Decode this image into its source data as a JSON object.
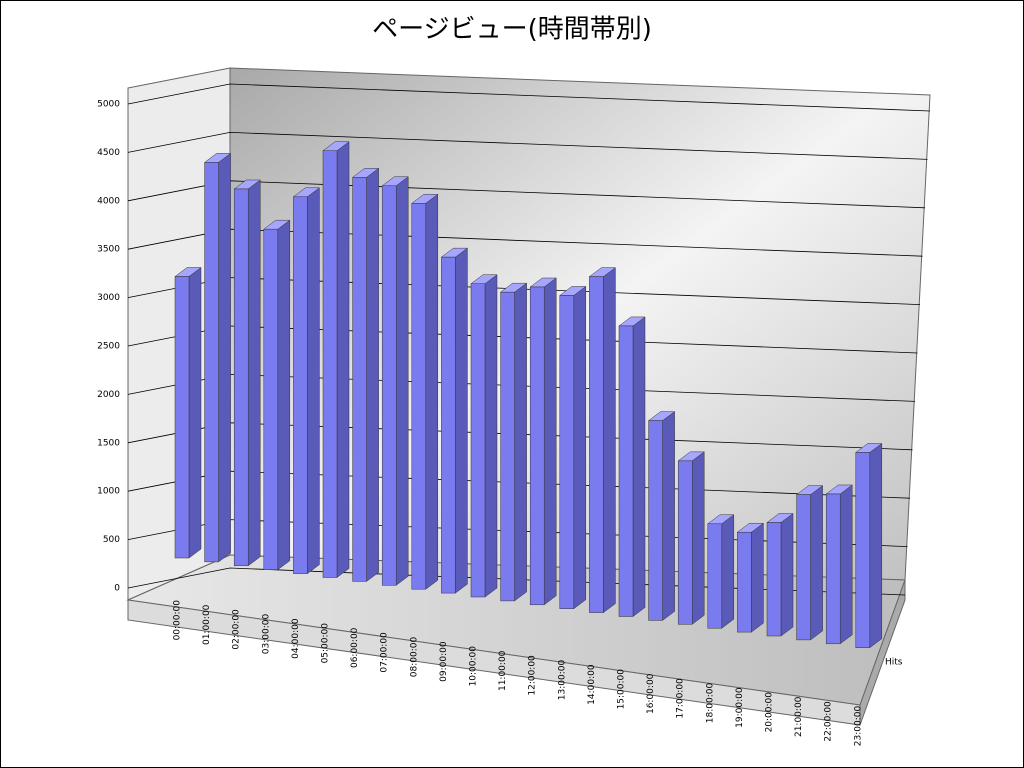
{
  "chart_data": {
    "type": "bar3d",
    "title": "ページビュー(時間帯別)",
    "categories": [
      "00:00:00",
      "01:00:00",
      "02:00:00",
      "03:00:00",
      "04:00:00",
      "05:00:00",
      "06:00:00",
      "07:00:00",
      "08:00:00",
      "09:00:00",
      "10:00:00",
      "11:00:00",
      "12:00:00",
      "13:00:00",
      "14:00:00",
      "15:00:00",
      "16:00:00",
      "17:00:00",
      "18:00:00",
      "19:00:00",
      "20:00:00",
      "21:00:00",
      "22:00:00",
      "23:00:00"
    ],
    "series": [
      {
        "name": "Hits",
        "color": "#7b7bf0",
        "values": [
          3100,
          4400,
          4150,
          3750,
          4150,
          4700,
          4450,
          4400,
          4250,
          3700,
          3450,
          3400,
          3500,
          3450,
          3700,
          3200,
          2200,
          1800,
          1150,
          1100,
          1250,
          1600,
          1650,
          2150
        ]
      }
    ],
    "ylim": [
      0,
      5000
    ],
    "yticks": [
      0,
      500,
      1000,
      1500,
      2000,
      2500,
      3000,
      3500,
      4000,
      4500,
      5000
    ],
    "grid": true
  }
}
